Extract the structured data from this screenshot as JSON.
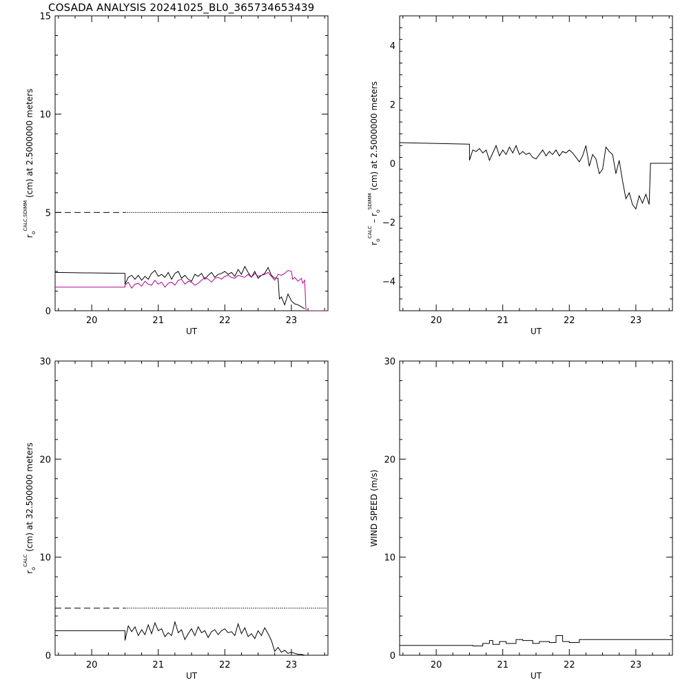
{
  "title": "COSADA ANALYSIS 20241025_BL0_365734653439",
  "colors": {
    "primary": "#000000",
    "secondary": "#b0008e"
  },
  "chart_data": [
    {
      "type": "line",
      "xlabel": "UT",
      "ylabel_base": "r",
      "ylabel_sub": "o",
      "ylabel_sup": "CALC,SDIMM",
      "ylabel_rest": "(cm)  at  2.5000000 meters",
      "xlim": [
        19.45,
        23.55
      ],
      "ylim": [
        0,
        15
      ],
      "x_ticks": [
        20,
        21,
        22,
        23
      ],
      "x_tick_labels": [
        "20",
        "21",
        "22",
        "23"
      ],
      "y_ticks": [
        0,
        5,
        10,
        15
      ],
      "y_tick_labels": [
        "0",
        "5",
        "10",
        "15"
      ],
      "grid": false,
      "reference_line": {
        "y": 5.0,
        "segments": [
          {
            "style": "dashed",
            "x": [
              19.45,
              20.5
            ]
          },
          {
            "style": "dotted",
            "x": [
              20.5,
              23.55
            ]
          }
        ]
      },
      "series": [
        {
          "color": "#000000",
          "x": [
            19.45,
            20.5,
            20.5,
            20.55,
            20.6,
            20.65,
            20.7,
            20.75,
            20.8,
            20.85,
            20.9,
            20.95,
            21.0,
            21.05,
            21.1,
            21.15,
            21.2,
            21.25,
            21.3,
            21.35,
            21.4,
            21.45,
            21.5,
            21.55,
            21.6,
            21.65,
            21.7,
            21.75,
            21.8,
            21.85,
            21.9,
            21.95,
            22.0,
            22.05,
            22.1,
            22.15,
            22.2,
            22.25,
            22.3,
            22.35,
            22.4,
            22.45,
            22.5,
            22.55,
            22.6,
            22.65,
            22.7,
            22.75,
            22.8,
            22.82,
            22.85,
            22.9,
            22.95,
            23.0,
            23.05,
            23.1,
            23.15,
            23.2
          ],
          "y": [
            1.95,
            1.9,
            1.35,
            1.7,
            1.8,
            1.6,
            1.8,
            1.55,
            1.75,
            1.6,
            1.9,
            2.05,
            1.75,
            1.85,
            1.7,
            1.95,
            1.6,
            1.9,
            2.0,
            1.65,
            1.8,
            1.6,
            1.5,
            1.85,
            1.75,
            1.9,
            1.6,
            1.8,
            1.95,
            1.7,
            1.85,
            1.9,
            2.0,
            1.85,
            1.95,
            1.75,
            2.1,
            1.85,
            2.25,
            1.95,
            1.7,
            2.0,
            1.65,
            1.8,
            1.9,
            2.2,
            1.8,
            1.65,
            1.65,
            0.6,
            0.7,
            0.3,
            0.85,
            0.5,
            0.35,
            0.3,
            0.2,
            0.1
          ]
        },
        {
          "color": "#b0008e",
          "x": [
            19.45,
            20.5,
            20.5,
            20.55,
            20.6,
            20.65,
            20.7,
            20.75,
            20.8,
            20.85,
            20.9,
            20.95,
            21.0,
            21.05,
            21.1,
            21.15,
            21.2,
            21.25,
            21.3,
            21.35,
            21.4,
            21.45,
            21.5,
            21.55,
            21.6,
            21.65,
            21.7,
            21.75,
            21.8,
            21.85,
            21.9,
            21.95,
            22.0,
            22.05,
            22.1,
            22.15,
            22.2,
            22.25,
            22.3,
            22.35,
            22.4,
            22.45,
            22.5,
            22.55,
            22.6,
            22.65,
            22.7,
            22.75,
            22.8,
            22.85,
            22.9,
            22.95,
            23.0,
            23.02,
            23.05,
            23.1,
            23.15,
            23.17,
            23.2,
            23.22,
            23.55
          ],
          "y": [
            1.2,
            1.2,
            1.3,
            1.45,
            1.15,
            1.35,
            1.4,
            1.25,
            1.5,
            1.35,
            1.3,
            1.55,
            1.35,
            1.45,
            1.2,
            1.4,
            1.45,
            1.3,
            1.55,
            1.6,
            1.35,
            1.5,
            1.45,
            1.3,
            1.4,
            1.55,
            1.7,
            1.6,
            1.45,
            1.65,
            1.7,
            1.6,
            1.75,
            1.8,
            1.7,
            1.65,
            1.8,
            1.75,
            1.7,
            1.85,
            1.7,
            1.9,
            1.75,
            1.8,
            1.85,
            1.95,
            1.75,
            1.55,
            1.85,
            1.8,
            1.9,
            2.05,
            2.0,
            1.6,
            1.7,
            1.5,
            1.65,
            1.4,
            1.55,
            0.0,
            0.0
          ]
        }
      ]
    },
    {
      "type": "line",
      "xlabel": "UT",
      "ylabel_base": "r",
      "ylabel_sub": "o",
      "ylabel_sup": "CALC",
      "ylabel_mid": "  –  r",
      "ylabel_sub2": "o",
      "ylabel_sup2": "SDIMM",
      "ylabel_rest": "(cm)  at  2.5000000 meters",
      "xlim": [
        19.45,
        23.55
      ],
      "ylim": [
        -5,
        5
      ],
      "x_ticks": [
        20,
        21,
        22,
        23
      ],
      "x_tick_labels": [
        "20",
        "21",
        "22",
        "23"
      ],
      "y_ticks": [
        -4,
        -2,
        0,
        2,
        4
      ],
      "y_tick_labels": [
        "−4",
        "−2",
        "0",
        "2",
        "4"
      ],
      "grid": false,
      "series": [
        {
          "color": "#000000",
          "x": [
            19.45,
            20.5,
            20.5,
            20.55,
            20.6,
            20.65,
            20.7,
            20.75,
            20.8,
            20.85,
            20.9,
            20.95,
            21.0,
            21.05,
            21.1,
            21.15,
            21.2,
            21.25,
            21.3,
            21.35,
            21.4,
            21.45,
            21.5,
            21.55,
            21.6,
            21.65,
            21.7,
            21.75,
            21.8,
            21.85,
            21.9,
            21.95,
            22.0,
            22.05,
            22.1,
            22.15,
            22.2,
            22.25,
            22.3,
            22.35,
            22.4,
            22.45,
            22.5,
            22.55,
            22.6,
            22.65,
            22.7,
            22.75,
            22.8,
            22.85,
            22.9,
            22.95,
            23.0,
            23.05,
            23.1,
            23.15,
            23.2,
            23.22,
            23.55
          ],
          "y": [
            0.7,
            0.65,
            0.1,
            0.45,
            0.4,
            0.5,
            0.35,
            0.45,
            0.1,
            0.35,
            0.6,
            0.25,
            0.45,
            0.3,
            0.55,
            0.35,
            0.6,
            0.3,
            0.4,
            0.3,
            0.35,
            0.2,
            0.15,
            0.3,
            0.45,
            0.25,
            0.4,
            0.3,
            0.45,
            0.25,
            0.4,
            0.35,
            0.45,
            0.35,
            0.2,
            0.05,
            0.25,
            0.6,
            -0.1,
            0.3,
            0.15,
            -0.35,
            -0.2,
            0.55,
            0.4,
            0.3,
            -0.35,
            0.1,
            -0.6,
            -1.2,
            -1.0,
            -1.4,
            -1.55,
            -1.1,
            -1.35,
            -1.05,
            -1.4,
            0.0,
            0.0
          ]
        }
      ]
    },
    {
      "type": "line",
      "xlabel": "UT",
      "ylabel_base": "r",
      "ylabel_sub": "o",
      "ylabel_sup": "CALC",
      "ylabel_rest": "(cm)  at  32.500000 meters",
      "xlim": [
        19.45,
        23.55
      ],
      "ylim": [
        0,
        30
      ],
      "x_ticks": [
        20,
        21,
        22,
        23
      ],
      "x_tick_labels": [
        "20",
        "21",
        "22",
        "23"
      ],
      "y_ticks": [
        0,
        10,
        20,
        30
      ],
      "y_tick_labels": [
        "0",
        "10",
        "20",
        "30"
      ],
      "grid": false,
      "reference_line": {
        "y": 4.8,
        "segments": [
          {
            "style": "dashed",
            "x": [
              19.45,
              20.5
            ]
          },
          {
            "style": "dotted",
            "x": [
              20.5,
              23.55
            ]
          }
        ]
      },
      "series": [
        {
          "color": "#000000",
          "x": [
            19.45,
            20.5,
            20.5,
            20.55,
            20.6,
            20.65,
            20.7,
            20.75,
            20.8,
            20.85,
            20.9,
            20.95,
            21.0,
            21.05,
            21.1,
            21.15,
            21.2,
            21.25,
            21.3,
            21.35,
            21.4,
            21.45,
            21.5,
            21.55,
            21.6,
            21.65,
            21.7,
            21.75,
            21.8,
            21.85,
            21.9,
            21.95,
            22.0,
            22.05,
            22.1,
            22.15,
            22.2,
            22.25,
            22.3,
            22.35,
            22.4,
            22.45,
            22.5,
            22.55,
            22.6,
            22.65,
            22.7,
            22.75,
            22.8,
            22.85,
            22.9,
            22.95,
            23.0,
            23.05,
            23.1,
            23.15,
            23.2
          ],
          "y": [
            2.5,
            2.5,
            1.5,
            3.0,
            2.4,
            2.9,
            2.0,
            2.6,
            2.1,
            3.1,
            2.2,
            3.3,
            2.5,
            2.7,
            1.9,
            2.3,
            2.0,
            3.4,
            2.3,
            2.6,
            1.6,
            2.2,
            2.7,
            2.0,
            2.9,
            2.3,
            2.5,
            1.8,
            2.4,
            2.6,
            2.1,
            2.5,
            2.7,
            2.3,
            2.4,
            2.0,
            3.2,
            2.2,
            2.8,
            1.9,
            2.2,
            1.7,
            2.5,
            2.0,
            2.8,
            2.2,
            1.5,
            0.4,
            0.8,
            0.3,
            0.5,
            0.2,
            0.3,
            0.2,
            0.1,
            0.1,
            0.0
          ]
        }
      ]
    },
    {
      "type": "line",
      "xlabel": "UT",
      "ylabel_base": "WIND SPEED (m/s)",
      "xlim": [
        19.45,
        23.55
      ],
      "ylim": [
        0,
        30
      ],
      "x_ticks": [
        20,
        21,
        22,
        23
      ],
      "x_tick_labels": [
        "20",
        "21",
        "22",
        "23"
      ],
      "y_ticks": [
        0,
        10,
        20,
        30
      ],
      "y_tick_labels": [
        "0",
        "10",
        "20",
        "30"
      ],
      "grid": false,
      "series": [
        {
          "color": "#000000",
          "step": true,
          "x": [
            19.45,
            20.55,
            20.7,
            20.8,
            20.85,
            20.95,
            21.05,
            21.2,
            21.3,
            21.45,
            21.55,
            21.7,
            21.8,
            21.9,
            22.0,
            22.15,
            23.55
          ],
          "y": [
            1.0,
            0.95,
            1.2,
            1.5,
            1.1,
            1.4,
            1.2,
            1.6,
            1.5,
            1.2,
            1.4,
            1.3,
            2.0,
            1.4,
            1.3,
            1.6,
            1.6
          ]
        }
      ]
    }
  ]
}
